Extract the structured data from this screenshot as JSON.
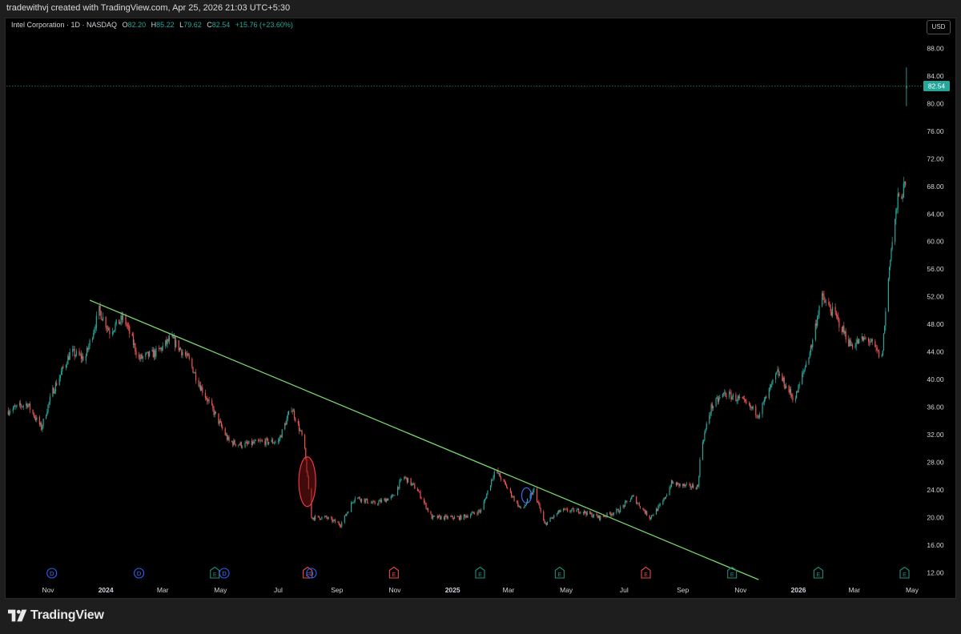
{
  "header": {
    "credit": "tradewithvj created with TradingView.com, Apr 25, 2026 21:03 UTC+5:30"
  },
  "legend": {
    "symbol": "Intel Corporation · 1D · NASDAQ",
    "open_label": "O",
    "open": "82.20",
    "high_label": "H",
    "high": "85.22",
    "low_label": "L",
    "low": "79.62",
    "close_label": "C",
    "close": "82.54",
    "change": "+15.76 (+23.60%)"
  },
  "currency_button": "USD",
  "footer": {
    "brand": "TradingView"
  },
  "colors": {
    "up": "#26a69a",
    "down": "#ef5350",
    "trendline": "#76d36b",
    "price_label": "#26a69a",
    "background": "#000000"
  },
  "chart_data": {
    "type": "candlestick",
    "title": "Intel Corporation · 1D · NASDAQ",
    "y_axis": {
      "ticks": [
        "88.00",
        "84.00",
        "80.00",
        "76.00",
        "72.00",
        "68.00",
        "64.00",
        "60.00",
        "56.00",
        "52.00",
        "48.00",
        "44.00",
        "40.00",
        "36.00",
        "32.00",
        "28.00",
        "24.00",
        "20.00",
        "16.00",
        "12.00"
      ],
      "range": [
        11,
        90
      ]
    },
    "x_axis": {
      "labels": [
        "Nov",
        "2024",
        "Mar",
        "May",
        "Jul",
        "Sep",
        "Nov",
        "2025",
        "Mar",
        "May",
        "Jul",
        "Sep",
        "Nov",
        "2026",
        "Mar",
        "May"
      ],
      "dates": [
        "2023-11-01",
        "2024-01-01",
        "2024-03-01",
        "2024-05-01",
        "2024-07-01",
        "2024-09-01",
        "2024-11-01",
        "2025-01-01",
        "2025-03-01",
        "2025-05-01",
        "2025-07-01",
        "2025-09-01",
        "2025-11-01",
        "2026-01-01",
        "2026-03-01",
        "2026-05-01"
      ],
      "bold": [
        "2024",
        "2025",
        "2026"
      ]
    },
    "last_price": 82.54,
    "series": [
      {
        "keypoints": [
          [
            "2023-09-20",
            35.5
          ],
          [
            "2023-10-10",
            36.5
          ],
          [
            "2023-10-25",
            33
          ],
          [
            "2023-11-05",
            38
          ],
          [
            "2023-11-25",
            44
          ],
          [
            "2023-12-10",
            43
          ],
          [
            "2023-12-25",
            50
          ],
          [
            "2024-01-05",
            47
          ],
          [
            "2024-01-20",
            49
          ],
          [
            "2024-02-05",
            43
          ],
          [
            "2024-02-25",
            44
          ],
          [
            "2024-03-10",
            46
          ],
          [
            "2024-03-28",
            43
          ],
          [
            "2024-04-10",
            39
          ],
          [
            "2024-04-25",
            35
          ],
          [
            "2024-05-10",
            31
          ],
          [
            "2024-05-25",
            30.5
          ],
          [
            "2024-06-15",
            31
          ],
          [
            "2024-07-01",
            31
          ],
          [
            "2024-07-15",
            36
          ],
          [
            "2024-07-28",
            31
          ],
          [
            "2024-08-05",
            20
          ],
          [
            "2024-08-20",
            20
          ],
          [
            "2024-09-05",
            19
          ],
          [
            "2024-09-20",
            23
          ],
          [
            "2024-10-10",
            22
          ],
          [
            "2024-10-30",
            23
          ],
          [
            "2024-11-10",
            26
          ],
          [
            "2024-11-25",
            24
          ],
          [
            "2024-12-10",
            20
          ],
          [
            "2025-01-10",
            20
          ],
          [
            "2025-01-31",
            21
          ],
          [
            "2025-02-15",
            27
          ],
          [
            "2025-03-01",
            24
          ],
          [
            "2025-03-15",
            21
          ],
          [
            "2025-03-28",
            24
          ],
          [
            "2025-04-08",
            19
          ],
          [
            "2025-04-25",
            21
          ],
          [
            "2025-05-15",
            21
          ],
          [
            "2025-06-05",
            20
          ],
          [
            "2025-06-25",
            21
          ],
          [
            "2025-07-10",
            23
          ],
          [
            "2025-07-28",
            20
          ],
          [
            "2025-08-10",
            22
          ],
          [
            "2025-08-20",
            25
          ],
          [
            "2025-09-05",
            24.5
          ],
          [
            "2025-09-17",
            24.5
          ],
          [
            "2025-09-20",
            30
          ],
          [
            "2025-10-01",
            36
          ],
          [
            "2025-10-15",
            38
          ],
          [
            "2025-11-01",
            37
          ],
          [
            "2025-11-20",
            35
          ],
          [
            "2025-12-10",
            41
          ],
          [
            "2025-12-28",
            37
          ],
          [
            "2026-01-15",
            45
          ],
          [
            "2026-01-25",
            52
          ],
          [
            "2026-02-10",
            49
          ],
          [
            "2026-02-25",
            45
          ],
          [
            "2026-03-15",
            46
          ],
          [
            "2026-03-30",
            43
          ],
          [
            "2026-04-08",
            58
          ],
          [
            "2026-04-16",
            66
          ],
          [
            "2026-04-24",
            68
          ]
        ],
        "last_candle": {
          "date": "2026-04-25",
          "open": 82.2,
          "high": 85.22,
          "low": 79.62,
          "close": 82.54
        }
      }
    ],
    "trendline": {
      "from": [
        "2023-12-15",
        51.5
      ],
      "to": [
        "2025-11-20",
        11
      ]
    },
    "annotations": [
      {
        "type": "ellipse",
        "center": [
          "2024-08-01",
          25.2
        ],
        "color": "red"
      },
      {
        "type": "ellipse",
        "center": [
          "2025-03-20",
          23.2
        ],
        "color": "blue"
      }
    ],
    "events": [
      {
        "date": "2023-11-05",
        "letter": "D",
        "type": "dividend"
      },
      {
        "date": "2024-02-05",
        "letter": "D",
        "type": "dividend"
      },
      {
        "date": "2024-04-25",
        "letter": "E",
        "type": "earnings-positive"
      },
      {
        "date": "2024-05-05",
        "letter": "D",
        "type": "dividend"
      },
      {
        "date": "2024-08-01",
        "letter": "E",
        "type": "earnings-negative"
      },
      {
        "date": "2024-08-05",
        "letter": "D",
        "type": "dividend"
      },
      {
        "date": "2024-10-31",
        "letter": "E",
        "type": "earnings-negative"
      },
      {
        "date": "2025-01-30",
        "letter": "E",
        "type": "earnings-positive"
      },
      {
        "date": "2025-04-24",
        "letter": "E",
        "type": "earnings-positive"
      },
      {
        "date": "2025-07-24",
        "letter": "E",
        "type": "earnings-negative"
      },
      {
        "date": "2025-10-23",
        "letter": "E",
        "type": "earnings-positive"
      },
      {
        "date": "2026-01-22",
        "letter": "E",
        "type": "earnings-positive"
      },
      {
        "date": "2026-04-23",
        "letter": "E",
        "type": "earnings-positive"
      }
    ]
  }
}
